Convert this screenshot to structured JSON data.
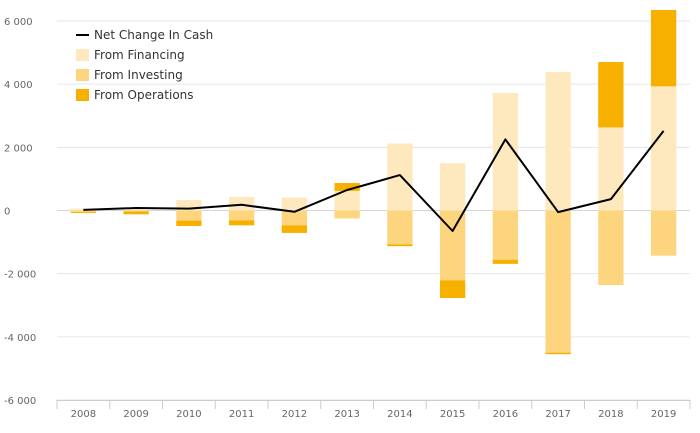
{
  "chart_data": {
    "type": "bar",
    "stacked": true,
    "categories": [
      "2008",
      "2009",
      "2010",
      "2011",
      "2012",
      "2013",
      "2014",
      "2015",
      "2016",
      "2017",
      "2018",
      "2019"
    ],
    "series": [
      {
        "name": "From Financing",
        "color": "#fde9bd",
        "values": [
          60,
          10,
          330,
          430,
          410,
          620,
          2120,
          1500,
          3720,
          4390,
          2630,
          3930
        ]
      },
      {
        "name": "From Investing",
        "color": "#fdd57f",
        "values": [
          -50,
          -30,
          -320,
          -310,
          -470,
          -250,
          -1070,
          -2210,
          -1560,
          -4500,
          -2360,
          -1430
        ]
      },
      {
        "name": "From Operations",
        "color": "#f7b000",
        "values": [
          -30,
          -90,
          -170,
          -160,
          -240,
          250,
          -60,
          -560,
          -130,
          -50,
          2070,
          2420
        ]
      },
      {
        "name": "Net Change In Cash",
        "color": "#000000",
        "type": "line",
        "values": [
          20,
          80,
          60,
          180,
          -40,
          650,
          1120,
          -650,
          2250,
          -50,
          360,
          2520
        ]
      }
    ],
    "ylim": [
      -6000,
      6000
    ],
    "yticks": [
      -6000,
      -4000,
      -2000,
      0,
      2000,
      4000,
      6000
    ],
    "ytick_labels": [
      "-6 000",
      "-4 000",
      "-2 000",
      "0",
      "2 000",
      "4 000",
      "6 000"
    ],
    "grid": true,
    "legend": {
      "position": "top-left",
      "entries": [
        {
          "label": "Net Change In Cash",
          "marker": "line",
          "color": "#000000"
        },
        {
          "label": "From Financing",
          "marker": "square",
          "color": "#fde9bd"
        },
        {
          "label": "From Investing",
          "marker": "square",
          "color": "#fdd57f"
        },
        {
          "label": "From Operations",
          "marker": "square",
          "color": "#f7b000"
        }
      ]
    },
    "title": "",
    "xlabel": "",
    "ylabel": ""
  }
}
